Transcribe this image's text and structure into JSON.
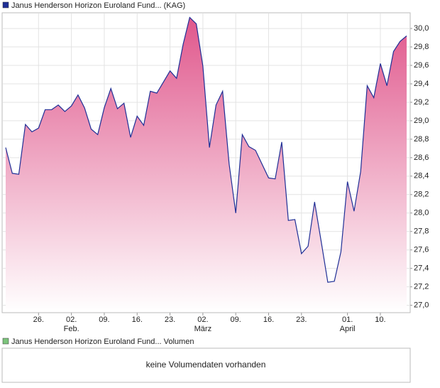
{
  "chart_data": {
    "type": "area",
    "categories": [
      null,
      null,
      null,
      null,
      null,
      "26.",
      null,
      null,
      null,
      null,
      "02.",
      null,
      null,
      null,
      null,
      "09.",
      null,
      null,
      null,
      null,
      "16.",
      null,
      null,
      null,
      null,
      "23.",
      null,
      null,
      null,
      null,
      "02.",
      null,
      null,
      null,
      null,
      "09.",
      null,
      null,
      null,
      null,
      "16.",
      null,
      null,
      null,
      null,
      "23.",
      null,
      null,
      null,
      null,
      null,
      null,
      "01.",
      null,
      null,
      null,
      null,
      "10.",
      null,
      null,
      null,
      null
    ],
    "month_labels": [
      null,
      null,
      null,
      null,
      null,
      null,
      null,
      null,
      null,
      null,
      "Feb.",
      null,
      null,
      null,
      null,
      null,
      null,
      null,
      null,
      null,
      null,
      null,
      null,
      null,
      null,
      null,
      null,
      null,
      null,
      null,
      "März",
      null,
      null,
      null,
      null,
      null,
      null,
      null,
      null,
      null,
      null,
      null,
      null,
      null,
      null,
      null,
      null,
      null,
      null,
      null,
      null,
      null,
      "April",
      null,
      null,
      null,
      null,
      null,
      null,
      null,
      null,
      null
    ],
    "series": [
      {
        "name": "Janus Henderson Horizon Euroland Fund... (KAG)",
        "color": "#1f2f96",
        "fill_color": "#e0578c",
        "values": [
          28.71,
          28.43,
          28.42,
          28.96,
          28.88,
          28.92,
          29.12,
          29.12,
          29.17,
          29.1,
          29.16,
          29.28,
          29.14,
          28.91,
          28.85,
          29.14,
          29.35,
          29.13,
          29.19,
          28.82,
          29.05,
          28.95,
          29.32,
          29.3,
          29.42,
          29.54,
          29.46,
          29.83,
          30.12,
          30.05,
          29.59,
          28.71,
          29.17,
          29.32,
          28.53,
          28.0,
          28.85,
          28.72,
          28.68,
          28.53,
          28.38,
          28.37,
          28.77,
          27.92,
          27.93,
          27.56,
          27.64,
          28.12,
          27.69,
          27.25,
          27.26,
          27.58,
          28.34,
          28.02,
          28.45,
          29.38,
          29.25,
          29.62,
          29.38,
          29.75,
          29.86,
          29.92
        ]
      }
    ],
    "ylim": [
      26.92,
      30.17
    ],
    "yticks": [
      {
        "value": 27.0,
        "label": "27,0"
      },
      {
        "value": 27.2,
        "label": "27,2"
      },
      {
        "value": 27.4,
        "label": "27,4"
      },
      {
        "value": 27.6,
        "label": "27,6"
      },
      {
        "value": 27.8,
        "label": "27,8"
      },
      {
        "value": 28.0,
        "label": "28,0"
      },
      {
        "value": 28.2,
        "label": "28,2"
      },
      {
        "value": 28.4,
        "label": "28,4"
      },
      {
        "value": 28.6,
        "label": "28,6"
      },
      {
        "value": 28.8,
        "label": "28,8"
      },
      {
        "value": 29.0,
        "label": "29,0"
      },
      {
        "value": 29.2,
        "label": "29,2"
      },
      {
        "value": 29.4,
        "label": "29,4"
      },
      {
        "value": 29.6,
        "label": "29,6"
      },
      {
        "value": 29.8,
        "label": "29,8"
      },
      {
        "value": 30.0,
        "label": "30,0"
      }
    ],
    "grid": true
  },
  "volume_panel": {
    "legend": "Janus Henderson Horizon Euroland Fund... Volumen",
    "legend_color": "#7cc47c",
    "message": "keine Volumendaten vorhanden"
  }
}
